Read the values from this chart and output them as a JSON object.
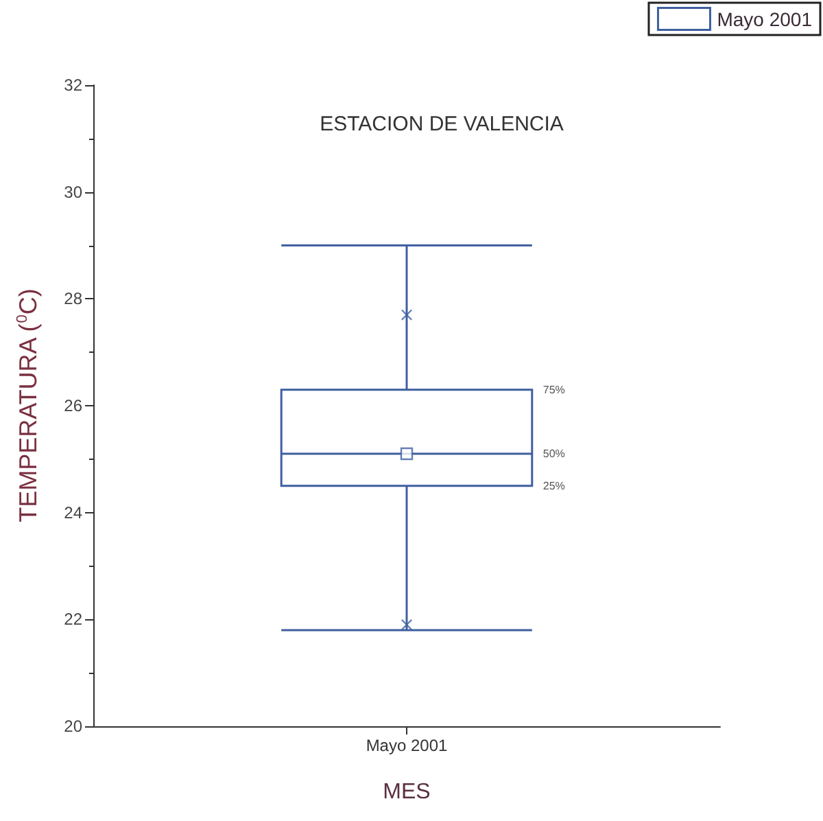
{
  "chart_data": {
    "type": "box",
    "title": "ESTACION DE VALENCIA",
    "xlabel": "MES",
    "ylabel": "TEMPERATURA ($^{0}$C)",
    "categories": [
      "Mayo 2001"
    ],
    "series": [
      {
        "name": "Mayo 2001",
        "color": "#3f5fa0",
        "boxes": [
          {
            "low": 21.8,
            "q1": 24.5,
            "median": 25.1,
            "q3": 26.3,
            "high": 29.0,
            "mean": 25.1,
            "outliers": [
              27.7,
              21.9
            ]
          }
        ]
      }
    ],
    "ylim": [
      20,
      32
    ],
    "yticks": [
      20,
      22,
      24,
      26,
      28,
      30,
      32
    ],
    "annotations": [
      "75%",
      "50%",
      "25%"
    ],
    "grid": false,
    "legend": "top right"
  }
}
